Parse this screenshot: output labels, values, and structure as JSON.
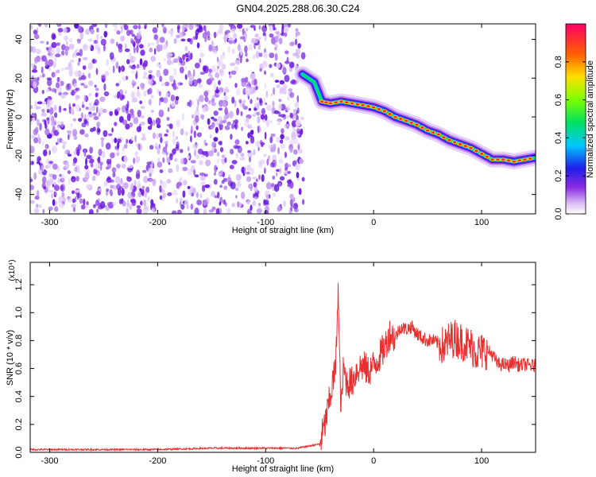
{
  "title": "GN04.2025.288.06.30.C24",
  "chart_data": [
    {
      "type": "heatmap",
      "xlabel": "Height of straight line (km)",
      "ylabel": "Frequency (Hz)",
      "xlim": [
        -318,
        150
      ],
      "ylim": [
        -50,
        48
      ],
      "xticks": [
        -300,
        -200,
        -100,
        0,
        100
      ],
      "yticks": [
        -40,
        -20,
        0,
        20,
        40
      ],
      "noise_region_x": [
        -318,
        -65
      ],
      "ridge": {
        "x": [
          -66,
          -55,
          -48,
          -40,
          -30,
          -20,
          -10,
          0,
          10,
          20,
          30,
          40,
          50,
          60,
          70,
          80,
          90,
          100,
          110,
          120,
          130,
          140,
          150
        ],
        "y": [
          22,
          18,
          8,
          7,
          8,
          7,
          6,
          5,
          3,
          0,
          -2,
          -4,
          -7,
          -9,
          -12,
          -14,
          -16,
          -19,
          -22,
          -22,
          -23,
          -22,
          -21
        ]
      },
      "colorbar": {
        "label": "Normalized spectral amplitude",
        "range": [
          0,
          1
        ],
        "ticks": [
          "0.0",
          "0.2",
          "0.4",
          "0.6",
          "0.8"
        ]
      }
    },
    {
      "type": "line",
      "xlabel": "Height of straight line (km)",
      "ylabel": "SNR (10 * v/v)",
      "multiplier": "(x10⁴)",
      "xlim": [
        -318,
        150
      ],
      "ylim": [
        0,
        1.36
      ],
      "xticks": [
        -300,
        -200,
        -100,
        0,
        100
      ],
      "yticks": [
        "0.0",
        "0.2",
        "0.4",
        "0.6",
        "0.8",
        "1.0",
        "1.2"
      ],
      "color": "#e83030",
      "series": [
        {
          "x": [
            -318,
            -250,
            -200,
            -150,
            -100,
            -70,
            -50,
            -45,
            -40,
            -38,
            -35,
            -33,
            -31,
            -30,
            -28,
            -25,
            -20,
            -15,
            -10,
            -5,
            0,
            5,
            10,
            15,
            20,
            25,
            30,
            35,
            40,
            45,
            50,
            55,
            60,
            65,
            70,
            75,
            80,
            85,
            90,
            95,
            100,
            105,
            110,
            115,
            120,
            125,
            130,
            135,
            140,
            145,
            150
          ],
          "values": [
            0.02,
            0.02,
            0.02,
            0.03,
            0.03,
            0.03,
            0.06,
            0.2,
            0.4,
            0.5,
            0.6,
            1.2,
            0.5,
            0.3,
            0.6,
            0.5,
            0.5,
            0.6,
            0.62,
            0.58,
            0.62,
            0.68,
            0.75,
            0.85,
            0.82,
            0.9,
            0.88,
            0.9,
            0.85,
            0.82,
            0.8,
            0.8,
            0.78,
            0.76,
            0.8,
            0.82,
            0.8,
            0.78,
            0.76,
            0.72,
            0.72,
            0.73,
            0.7,
            0.63,
            0.63,
            0.62,
            0.65,
            0.62,
            0.63,
            0.62,
            0.62
          ]
        }
      ]
    }
  ]
}
